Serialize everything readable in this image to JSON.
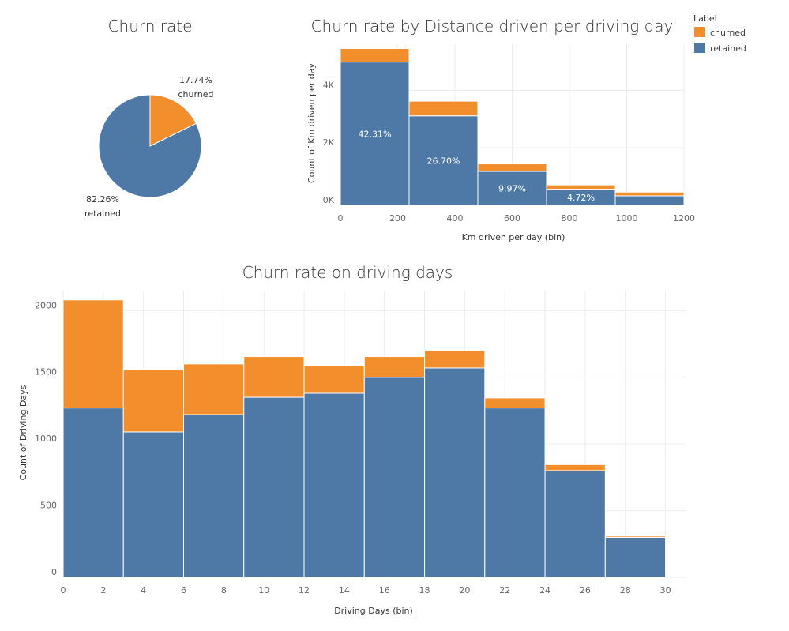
{
  "colors": {
    "churned": "#f28e2b",
    "retained": "#4e79a7"
  },
  "legend": {
    "title": "Label",
    "items": [
      {
        "key": "churned",
        "label": "churned"
      },
      {
        "key": "retained",
        "label": "retained"
      }
    ]
  },
  "chart_data": [
    {
      "type": "pie",
      "title": "Churn rate",
      "slices": [
        {
          "key": "churned",
          "label": "churned",
          "pct_label": "17.74%",
          "value": 17.74
        },
        {
          "key": "retained",
          "label": "retained",
          "pct_label": "82.26%",
          "value": 82.26
        }
      ]
    },
    {
      "type": "bar",
      "stacked": true,
      "title": "Churn rate by Distance driven per driving day",
      "xlabel": "Km driven per day (bin)",
      "ylabel": "Count of Km driven per day",
      "x_ticks": [
        "0",
        "200",
        "400",
        "600",
        "800",
        "1000",
        "1200"
      ],
      "y_ticks": [
        {
          "value": 0,
          "label": "0K"
        },
        {
          "value": 2000,
          "label": "2K"
        },
        {
          "value": 4000,
          "label": "4K"
        }
      ],
      "xlim": [
        0,
        1200
      ],
      "ylim": [
        0,
        5600
      ],
      "bin_width": 240,
      "bins": [
        {
          "start": 0,
          "retained": 4980,
          "churned": 470,
          "label": "42.31%"
        },
        {
          "start": 240,
          "retained": 3110,
          "churned": 510,
          "label": "26.70%"
        },
        {
          "start": 480,
          "retained": 1180,
          "churned": 260,
          "label": "9.97%"
        },
        {
          "start": 720,
          "retained": 560,
          "churned": 150,
          "label": "4.72%"
        },
        {
          "start": 960,
          "retained": 330,
          "churned": 130,
          "label": ""
        }
      ]
    },
    {
      "type": "bar",
      "stacked": true,
      "title": "Churn rate on driving days",
      "xlabel": "Driving Days (bin)",
      "ylabel": "Count of Driving Days",
      "x_ticks": [
        "0",
        "2",
        "4",
        "6",
        "8",
        "10",
        "12",
        "14",
        "16",
        "18",
        "20",
        "22",
        "24",
        "26",
        "28",
        "30"
      ],
      "y_ticks": [
        {
          "value": 0,
          "label": "0"
        },
        {
          "value": 500,
          "label": "500"
        },
        {
          "value": 1000,
          "label": "1000"
        },
        {
          "value": 1500,
          "label": "1500"
        },
        {
          "value": 2000,
          "label": "2000"
        }
      ],
      "xlim": [
        0,
        31
      ],
      "ylim": [
        0,
        2150
      ],
      "bin_width": 3,
      "bins": [
        {
          "start": 0,
          "retained": 1270,
          "churned": 810
        },
        {
          "start": 3,
          "retained": 1090,
          "churned": 465
        },
        {
          "start": 6,
          "retained": 1220,
          "churned": 380
        },
        {
          "start": 9,
          "retained": 1350,
          "churned": 305
        },
        {
          "start": 12,
          "retained": 1380,
          "churned": 205
        },
        {
          "start": 15,
          "retained": 1500,
          "churned": 155
        },
        {
          "start": 18,
          "retained": 1570,
          "churned": 130
        },
        {
          "start": 21,
          "retained": 1270,
          "churned": 75
        },
        {
          "start": 24,
          "retained": 800,
          "churned": 45
        },
        {
          "start": 27,
          "retained": 300,
          "churned": 10
        }
      ]
    }
  ]
}
